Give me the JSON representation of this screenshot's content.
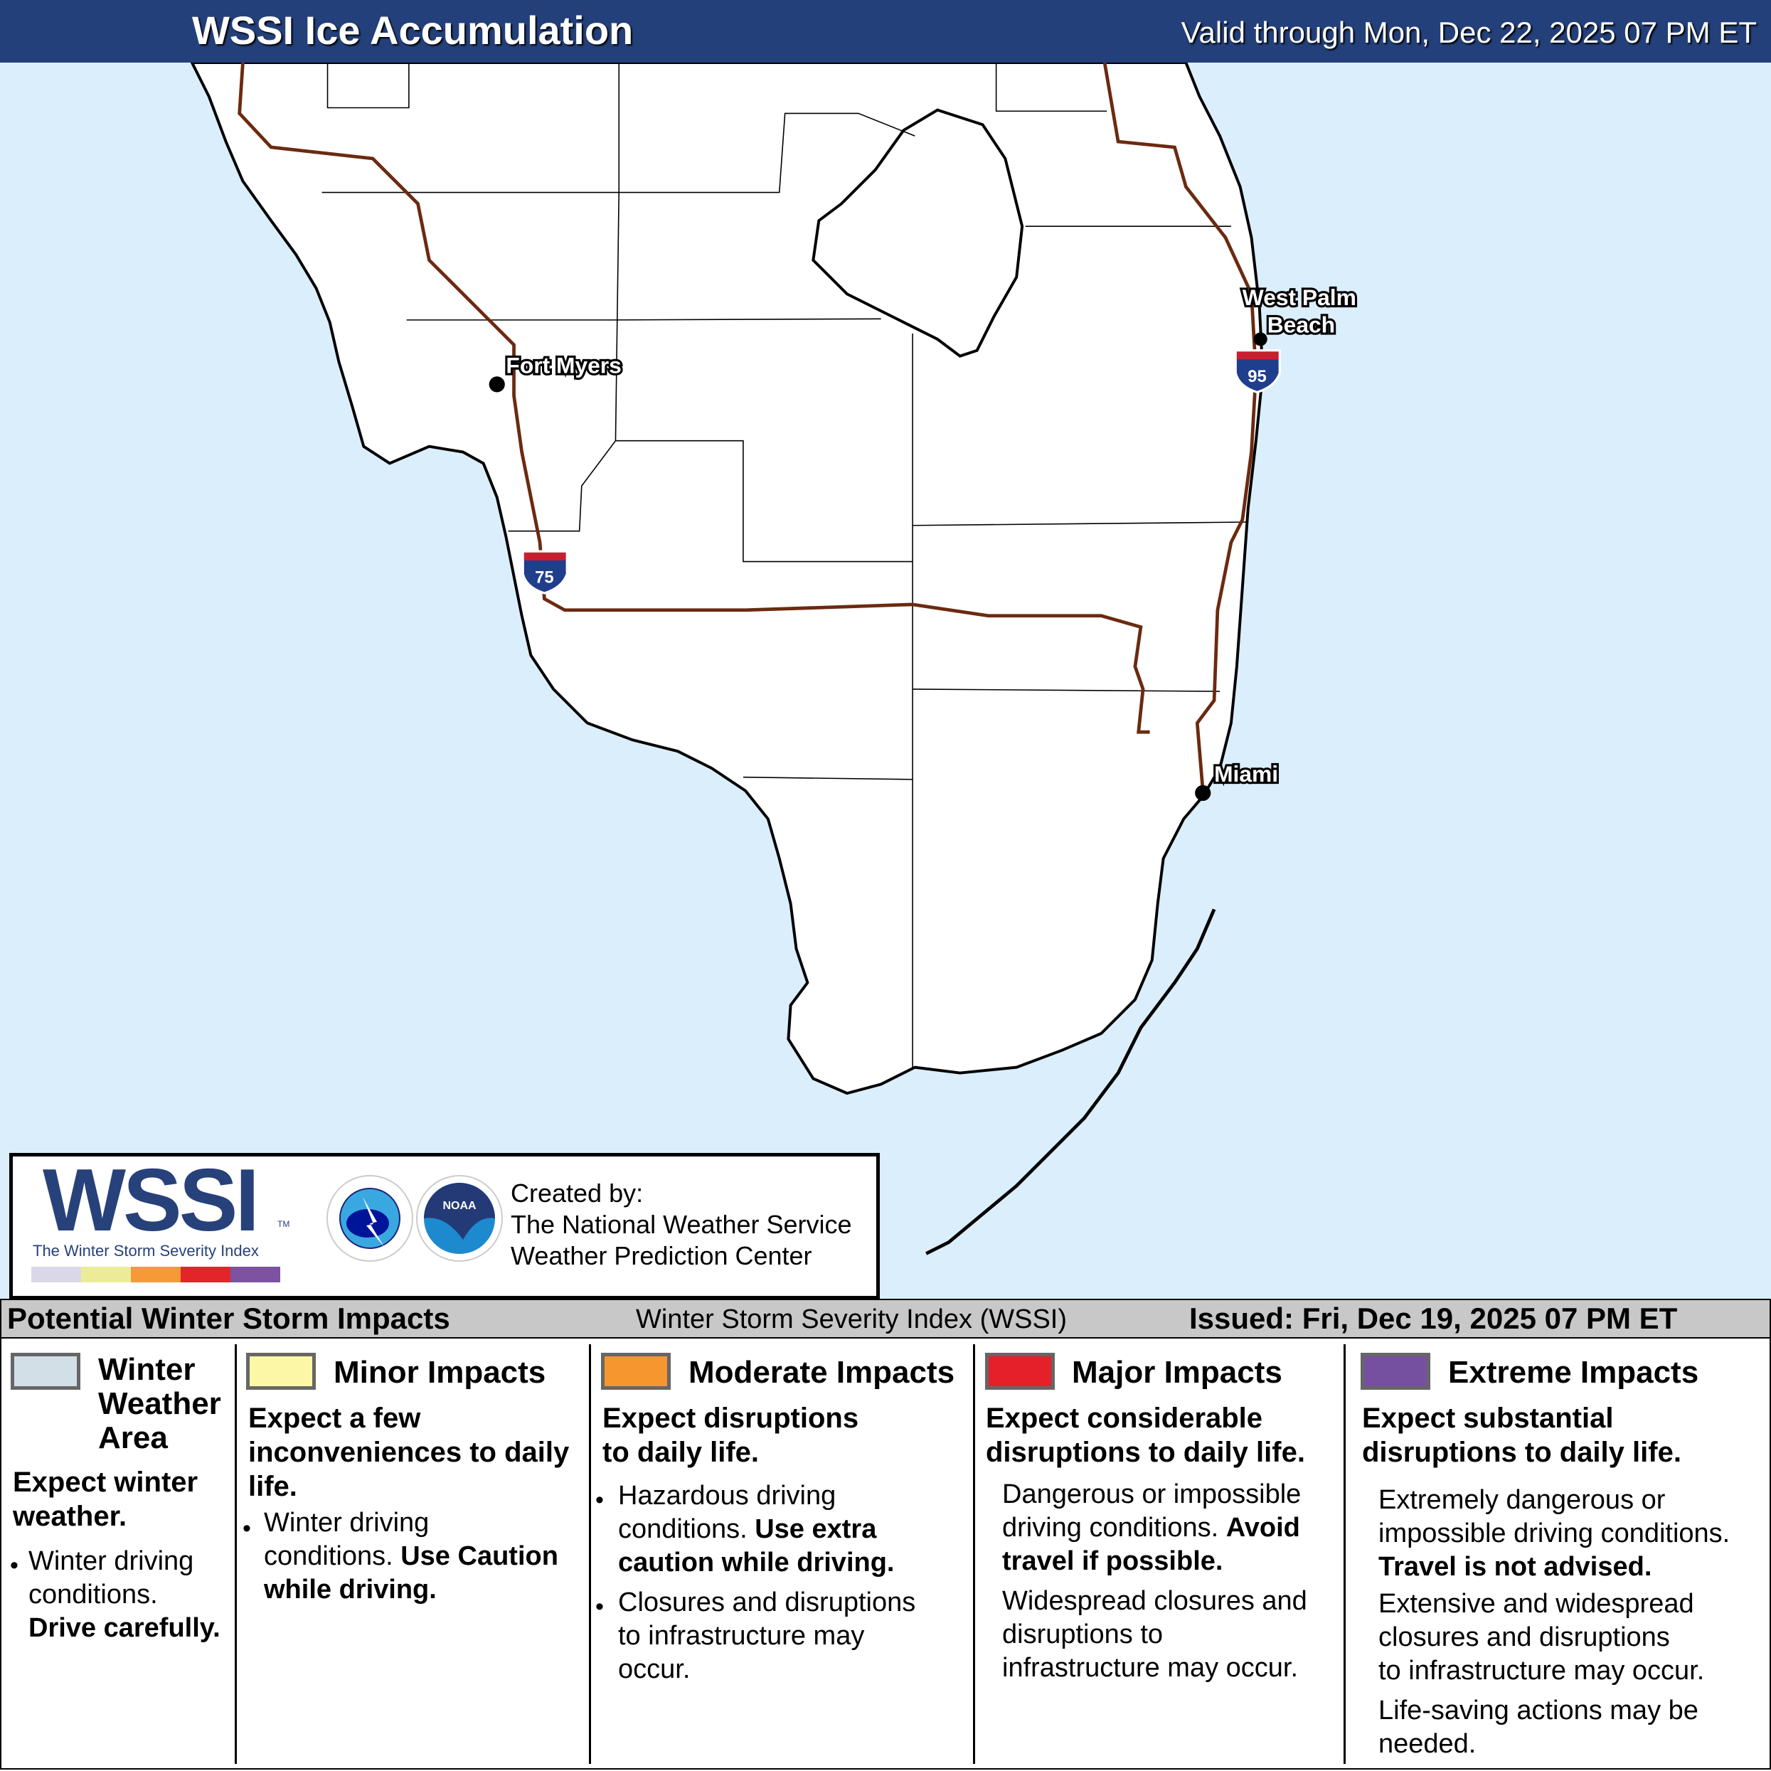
{
  "header": {
    "title": "WSSI Ice Accumulation",
    "valid": "Valid through Mon, Dec 22, 2025 07 PM ET",
    "background_color": "#24407a"
  },
  "map": {
    "ocean_color": "#dbeefc",
    "land_color": "#ffffff",
    "road_color": "#6b2a10",
    "cities": [
      {
        "name": "Fort Myers"
      },
      {
        "name": "West Palm Beach",
        "lines": [
          "West Palm",
          "Beach"
        ]
      },
      {
        "name": "Miami"
      }
    ],
    "interstates": [
      "75",
      "95"
    ]
  },
  "logo": {
    "wssi": "WSSI",
    "tm": "TM",
    "subtitle": "The Winter Storm Severity Index",
    "scale_colors": [
      "#dad8e8",
      "#ecec98",
      "#f59a36",
      "#e3242b",
      "#7c52a1"
    ],
    "nws_text": "NATIONAL WEATHER SERVICE",
    "noaa_text": "NOAA",
    "credits": [
      "Created by:",
      "The National Weather Service",
      "Weather Prediction Center"
    ]
  },
  "legend": {
    "left_title": "Potential Winter Storm Impacts",
    "center_title": "Winter Storm Severity Index (WSSI)",
    "issued": "Issued: Fri, Dec 19, 2025 07 PM ET",
    "categories": [
      {
        "name_lines": [
          "Winter",
          "Weather",
          "Area"
        ],
        "color": "#d3dfe6",
        "lead": [
          "Expect winter",
          "weather."
        ],
        "bullet": [
          "Winter driving",
          "conditions."
        ],
        "bold": "Drive carefully."
      },
      {
        "name": "Minor Impacts",
        "color": "#fbf7a6",
        "lead": [
          "Expect a few",
          "inconveniences to daily",
          "life."
        ],
        "bullet_a": "Winter driving",
        "bullet_b": "conditions.",
        "bold_a": "Use Caution",
        "bold_b": "while driving."
      },
      {
        "name": "Moderate Impacts",
        "color": "#f5962e",
        "lead": [
          "Expect disruptions",
          "to daily life."
        ],
        "b1_a": "Hazardous driving",
        "b1_b": "conditions.",
        "b1_bold_a": "Use extra",
        "b1_bold_b": "caution while driving.",
        "b2": [
          "Closures and disruptions",
          "to infrastructure may",
          "occur."
        ]
      },
      {
        "name": "Major Impacts",
        "color": "#e5202a",
        "lead": [
          "Expect considerable",
          "disruptions to daily life."
        ],
        "p1_a": "Dangerous or impossible",
        "p1_b": "driving conditions.",
        "p1_bold_a": "Avoid",
        "p1_bold_b": "travel if possible.",
        "p2": [
          "Widespread closures and",
          "disruptions to",
          "infrastructure may occur."
        ]
      },
      {
        "name": "Extreme Impacts",
        "color": "#7650a0",
        "lead": [
          "Expect substantial",
          "disruptions to daily life."
        ],
        "p1": [
          "Extremely dangerous or",
          "impossible driving conditions."
        ],
        "p1_bold": "Travel is not advised.",
        "p2": [
          "Extensive and widespread",
          "closures and disruptions",
          "to infrastructure may occur."
        ],
        "p3": [
          "Life-saving actions may be",
          "needed."
        ]
      }
    ]
  }
}
